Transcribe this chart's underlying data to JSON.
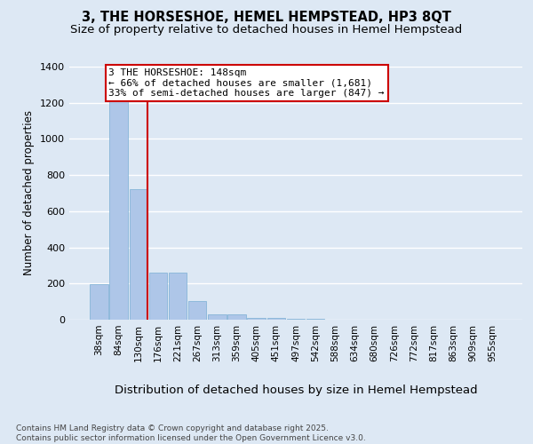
{
  "title": "3, THE HORSESHOE, HEMEL HEMPSTEAD, HP3 8QT",
  "subtitle": "Size of property relative to detached houses in Hemel Hempstead",
  "xlabel": "Distribution of detached houses by size in Hemel Hempstead",
  "ylabel": "Number of detached properties",
  "categories": [
    "38sqm",
    "84sqm",
    "130sqm",
    "176sqm",
    "221sqm",
    "267sqm",
    "313sqm",
    "359sqm",
    "405sqm",
    "451sqm",
    "497sqm",
    "542sqm",
    "588sqm",
    "634sqm",
    "680sqm",
    "726sqm",
    "772sqm",
    "817sqm",
    "863sqm",
    "909sqm",
    "955sqm"
  ],
  "values": [
    197,
    1220,
    720,
    260,
    260,
    105,
    30,
    28,
    10,
    8,
    5,
    3,
    0,
    0,
    0,
    0,
    0,
    0,
    0,
    0,
    0
  ],
  "bar_color": "#aec6e8",
  "bar_edgecolor": "#7aafd4",
  "background_color": "#dde8f4",
  "grid_color": "#ffffff",
  "redline_color": "#cc0000",
  "annotation_text": "3 THE HORSESHOE: 148sqm\n← 66% of detached houses are smaller (1,681)\n33% of semi-detached houses are larger (847) →",
  "annotation_box_color": "#ffffff",
  "annotation_box_edgecolor": "#cc0000",
  "ylim": [
    0,
    1400
  ],
  "yticks": [
    0,
    200,
    400,
    600,
    800,
    1000,
    1200,
    1400
  ],
  "footer": "Contains HM Land Registry data © Crown copyright and database right 2025.\nContains public sector information licensed under the Open Government Licence v3.0.",
  "title_fontsize": 10.5,
  "subtitle_fontsize": 9.5,
  "xlabel_fontsize": 9.5,
  "ylabel_fontsize": 8.5,
  "tick_fontsize": 7.5,
  "annotation_fontsize": 8,
  "footer_fontsize": 6.5
}
